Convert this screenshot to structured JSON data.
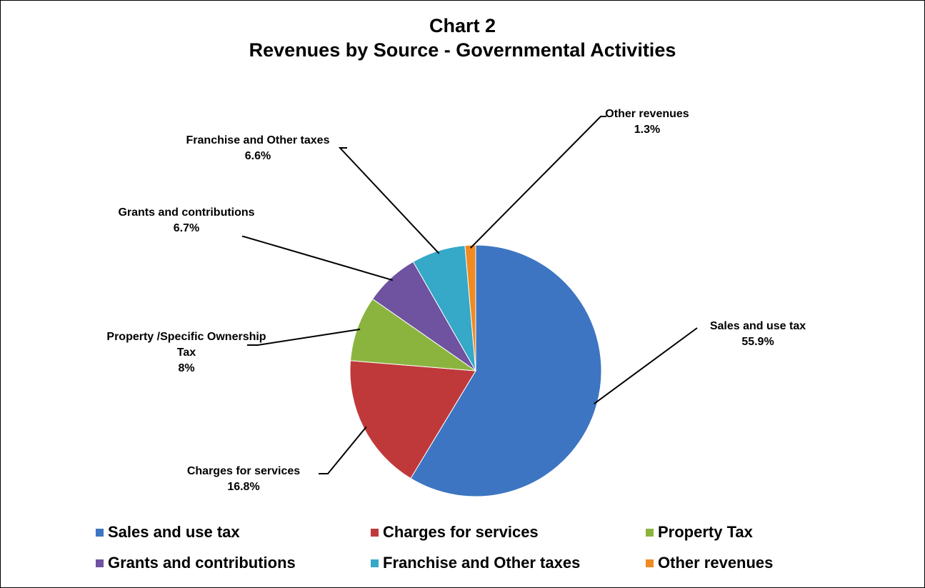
{
  "chart_data": {
    "type": "pie",
    "title": "Chart 2",
    "subtitle": "Revenues by Source - Governmental Activities",
    "categories": [
      "Sales and use tax",
      "Charges for services",
      "Property Tax",
      "Grants and contributions",
      "Franchise and Other taxes",
      "Other revenues"
    ],
    "slice_labels": [
      "Sales and use tax",
      "Charges for services",
      "Property /Specific Ownership Tax",
      "Grants and contributions",
      "Franchise and Other taxes",
      "Other revenues"
    ],
    "values": [
      55.9,
      16.8,
      8,
      6.7,
      6.6,
      1.3
    ],
    "value_labels": [
      "55.9%",
      "16.8%",
      "8%",
      "6.7%",
      "6.6%",
      "1.3%"
    ],
    "colors": [
      "#3d75c2",
      "#c0393a",
      "#8bb43f",
      "#6f52a0",
      "#36a8c8",
      "#f08a22"
    ],
    "legend": "bottom"
  }
}
